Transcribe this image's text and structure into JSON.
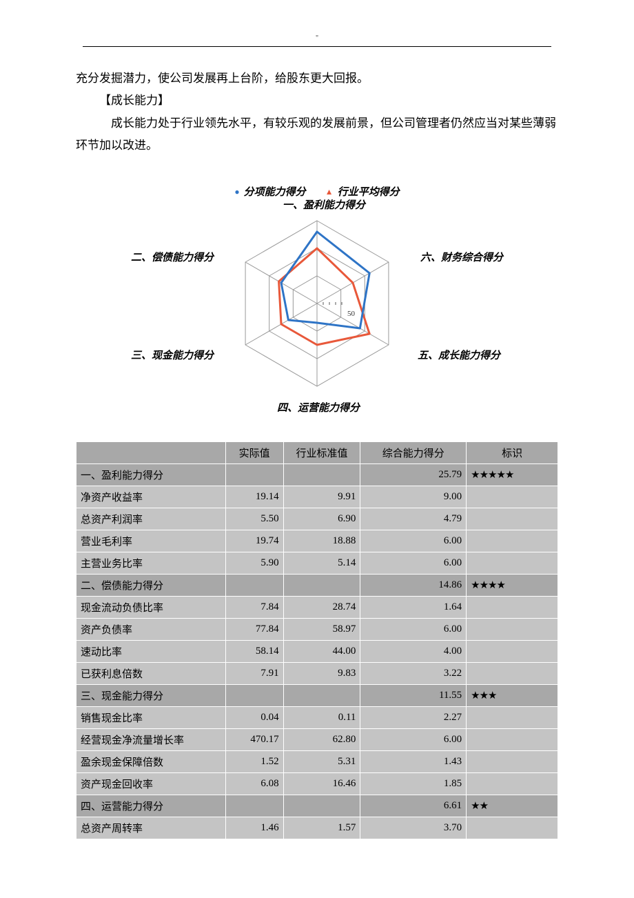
{
  "header_mark": "\"",
  "intro_line": "充分发掘潜力，使公司发展再上台阶，给股东更大回报。",
  "growth_title": "【成长能力】",
  "growth_text": "成长能力处于行业领先水平，有较乐观的发展前景，但公司管理者仍然应当对某些薄弱环节加以改进。",
  "chart": {
    "legend": {
      "company": "分项能力得分",
      "industry": "行业平均得分",
      "company_color": "#2e74c6",
      "industry_color": "#e8583a"
    },
    "axes": [
      "一、盈利能力得分",
      "六、财务综合得分",
      "五、成长能力得分",
      "四、运营能力得分",
      "三、现金能力得分",
      "二、偿债能力得分"
    ],
    "type": "radar",
    "max_value": 30,
    "ring_count": 3,
    "ring_color": "#999999",
    "spoke_color": "#999999",
    "background_color": "#ffffff",
    "company_values": [
      26,
      22,
      18,
      7,
      12,
      15
    ],
    "industry_values": [
      20,
      15,
      22,
      15,
      15,
      16
    ],
    "line_width": 3,
    "tick_label": "50",
    "label_fontsize": 15,
    "label_fontweight": "bold",
    "label_fontstyle": "italic"
  },
  "table": {
    "headers": [
      "",
      "实际值",
      "行业标准值",
      "综合能力得分",
      "标识"
    ],
    "rows": [
      {
        "section": true,
        "label": "一、盈利能力得分",
        "actual": "",
        "std": "",
        "score": "25.79",
        "mark": "★★★★★"
      },
      {
        "section": false,
        "label": "净资产收益率",
        "actual": "19.14",
        "std": "9.91",
        "score": "9.00",
        "mark": ""
      },
      {
        "section": false,
        "label": "总资产利润率",
        "actual": "5.50",
        "std": "6.90",
        "score": "4.79",
        "mark": ""
      },
      {
        "section": false,
        "label": "营业毛利率",
        "actual": "19.74",
        "std": "18.88",
        "score": "6.00",
        "mark": ""
      },
      {
        "section": false,
        "label": "主营业务比率",
        "actual": "5.90",
        "std": "5.14",
        "score": "6.00",
        "mark": ""
      },
      {
        "section": true,
        "label": "二、偿债能力得分",
        "actual": "",
        "std": "",
        "score": "14.86",
        "mark": "★★★★"
      },
      {
        "section": false,
        "label": "现金流动负债比率",
        "actual": "7.84",
        "std": "28.74",
        "score": "1.64",
        "mark": ""
      },
      {
        "section": false,
        "label": "资产负债率",
        "actual": "77.84",
        "std": "58.97",
        "score": "6.00",
        "mark": ""
      },
      {
        "section": false,
        "label": "速动比率",
        "actual": "58.14",
        "std": "44.00",
        "score": "4.00",
        "mark": ""
      },
      {
        "section": false,
        "label": "已获利息倍数",
        "actual": "7.91",
        "std": "9.83",
        "score": "3.22",
        "mark": ""
      },
      {
        "section": true,
        "label": "三、现金能力得分",
        "actual": "",
        "std": "",
        "score": "11.55",
        "mark": "★★★"
      },
      {
        "section": false,
        "label": "销售现金比率",
        "actual": "0.04",
        "std": "0.11",
        "score": "2.27",
        "mark": ""
      },
      {
        "section": false,
        "label": "经营现金净流量增长率",
        "actual": "470.17",
        "std": "62.80",
        "score": "6.00",
        "mark": ""
      },
      {
        "section": false,
        "label": "盈余现金保障倍数",
        "actual": "1.52",
        "std": "5.31",
        "score": "1.43",
        "mark": ""
      },
      {
        "section": false,
        "label": "资产现金回收率",
        "actual": "6.08",
        "std": "16.46",
        "score": "1.85",
        "mark": ""
      },
      {
        "section": true,
        "label": "四、运营能力得分",
        "actual": "",
        "std": "",
        "score": "6.61",
        "mark": "★★"
      },
      {
        "section": false,
        "label": "总资产周转率",
        "actual": "1.46",
        "std": "1.57",
        "score": "3.70",
        "mark": ""
      }
    ]
  }
}
